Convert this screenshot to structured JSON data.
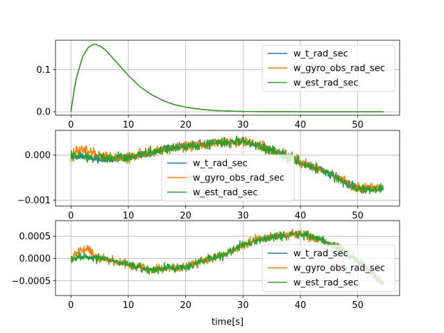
{
  "chart_data": [
    {
      "type": "line",
      "xlim": [
        -2.7,
        57.3
      ],
      "ylim": [
        -0.008,
        0.17
      ],
      "xticks": [
        0,
        10,
        20,
        30,
        40,
        50
      ],
      "xtick_labels": [
        "0",
        "10",
        "20",
        "30",
        "40",
        "50"
      ],
      "yticks": [
        0.0,
        0.1
      ],
      "ytick_labels": [
        "0.0",
        "0.1"
      ],
      "grid": true,
      "legend": "upper right",
      "xlabel": "",
      "series": [
        {
          "name": "w_t_rad_sec",
          "color": "#1f77b4",
          "x": [
            0,
            0.5,
            1,
            2,
            3,
            4,
            5,
            6,
            8,
            10,
            12,
            14,
            16,
            18,
            20,
            22,
            25,
            30,
            35,
            40,
            45,
            50,
            54.5
          ],
          "y": [
            0,
            0.048,
            0.083,
            0.13,
            0.153,
            0.161,
            0.157,
            0.147,
            0.117,
            0.086,
            0.06,
            0.041,
            0.027,
            0.017,
            0.011,
            0.0068,
            0.003,
            0.0008,
            0.0002,
            0.0001,
            0.0,
            0.0,
            0.0
          ]
        },
        {
          "name": "w_gyro_obs_rad_sec",
          "color": "#ff7f0e",
          "x": [
            0,
            0.5,
            1,
            2,
            3,
            4,
            5,
            6,
            8,
            10,
            12,
            14,
            16,
            18,
            20,
            22,
            25,
            30,
            35,
            40,
            45,
            50,
            54.5
          ],
          "y": [
            0,
            0.048,
            0.083,
            0.13,
            0.153,
            0.161,
            0.157,
            0.147,
            0.117,
            0.086,
            0.06,
            0.041,
            0.027,
            0.017,
            0.011,
            0.0068,
            0.003,
            0.0008,
            0.0002,
            0.0001,
            0.0,
            0.0,
            0.0
          ]
        },
        {
          "name": "w_est_rad_sec",
          "color": "#2ca02c",
          "x": [
            0,
            0.5,
            1,
            2,
            3,
            4,
            5,
            6,
            8,
            10,
            12,
            14,
            16,
            18,
            20,
            22,
            25,
            30,
            35,
            40,
            45,
            50,
            54.5
          ],
          "y": [
            0,
            0.048,
            0.083,
            0.13,
            0.153,
            0.161,
            0.157,
            0.147,
            0.117,
            0.086,
            0.06,
            0.041,
            0.027,
            0.017,
            0.011,
            0.0068,
            0.003,
            0.0008,
            0.0002,
            0.0001,
            0.0,
            0.0,
            0.0
          ]
        }
      ]
    },
    {
      "type": "line",
      "xlim": [
        -2.7,
        57.3
      ],
      "ylim": [
        -0.00113,
        0.00055
      ],
      "xticks": [
        0,
        10,
        20,
        30,
        40,
        50
      ],
      "xtick_labels": [
        "0",
        "10",
        "20",
        "30",
        "40",
        "50"
      ],
      "yticks": [
        -0.001,
        0.0
      ],
      "ytick_labels": [
        "−0.001",
        "0.000"
      ],
      "grid": true,
      "legend": "center",
      "xlabel": "",
      "noise": [
        6e-05,
        8e-05,
        8e-05
      ],
      "series": [
        {
          "name": "w_t_rad_sec",
          "color": "#1f77b4",
          "x": [
            0,
            3,
            6,
            10,
            15,
            20,
            25,
            30,
            33,
            36,
            40,
            45,
            50,
            54.5
          ],
          "y": [
            0.0,
            -5e-05,
            -8e-05,
            -5e-05,
            0.0001,
            0.0002,
            0.00028,
            0.0003,
            0.0002,
            5e-05,
            -0.00015,
            -0.0004,
            -0.00075,
            -0.00072
          ]
        },
        {
          "name": "w_gyro_obs_rad_sec",
          "color": "#ff7f0e",
          "x": [
            0,
            1,
            2,
            3,
            4,
            5,
            6,
            10,
            15,
            20,
            25,
            30,
            33,
            36,
            40,
            45,
            50,
            54.5
          ],
          "y": [
            0.0,
            0.0001,
            0.00012,
            0.0001,
            5e-05,
            -2e-05,
            -6e-05,
            -5e-05,
            0.0001,
            0.0002,
            0.00028,
            0.0003,
            0.0002,
            5e-05,
            -0.00015,
            -0.0004,
            -0.00075,
            -0.00072
          ]
        },
        {
          "name": "w_est_rad_sec",
          "color": "#2ca02c",
          "x": [
            0,
            3,
            6,
            10,
            15,
            20,
            25,
            30,
            33,
            36,
            40,
            45,
            50,
            54.5
          ],
          "y": [
            0.0,
            -5e-05,
            -8e-05,
            -5e-05,
            0.0001,
            0.0002,
            0.00028,
            0.0003,
            0.0002,
            5e-05,
            -0.00015,
            -0.0004,
            -0.00075,
            -0.00072
          ]
        }
      ]
    },
    {
      "type": "line",
      "xlim": [
        -2.7,
        57.3
      ],
      "ylim": [
        -0.00083,
        0.00085
      ],
      "xticks": [
        0,
        10,
        20,
        30,
        40,
        50
      ],
      "xtick_labels": [
        "0",
        "10",
        "20",
        "30",
        "40",
        "50"
      ],
      "yticks": [
        -0.0005,
        0.0,
        0.0005
      ],
      "ytick_labels": [
        "−0.0005",
        "0.0000",
        "0.0005"
      ],
      "grid": true,
      "legend": "lower right",
      "xlabel": "time[s]",
      "noise": [
        2e-05,
        7e-05,
        7e-05
      ],
      "series": [
        {
          "name": "w_t_rad_sec",
          "color": "#1f77b4",
          "x": [
            0,
            2,
            5,
            8,
            11,
            14,
            17,
            20,
            23,
            26,
            30,
            33,
            36,
            40,
            44,
            47,
            50,
            54.5
          ],
          "y": [
            0.0,
            3e-05,
            2e-05,
            -8e-05,
            -0.00018,
            -0.00025,
            -0.00022,
            -0.0002,
            -5e-05,
            5e-05,
            0.0003,
            0.00045,
            0.0005,
            0.00055,
            0.0004,
            0.0002,
            -5e-05,
            -0.00055
          ]
        },
        {
          "name": "w_gyro_obs_rad_sec",
          "color": "#ff7f0e",
          "x": [
            0,
            1,
            2,
            3,
            4,
            5,
            8,
            11,
            14,
            17,
            20,
            23,
            26,
            30,
            33,
            36,
            40,
            44,
            47,
            50,
            54.5
          ],
          "y": [
            0.0,
            0.00012,
            0.0002,
            0.00022,
            0.00012,
            3e-05,
            -8e-05,
            -0.00018,
            -0.00025,
            -0.00022,
            -0.0002,
            -5e-05,
            5e-05,
            0.0003,
            0.00045,
            0.0005,
            0.00055,
            0.0004,
            0.0002,
            -5e-05,
            -0.00055
          ]
        },
        {
          "name": "w_est_rad_sec",
          "color": "#2ca02c",
          "x": [
            0,
            2,
            5,
            8,
            11,
            14,
            17,
            20,
            23,
            26,
            30,
            33,
            36,
            40,
            44,
            47,
            50,
            54.5
          ],
          "y": [
            0.0,
            3e-05,
            2e-05,
            -8e-05,
            -0.00018,
            -0.00025,
            -0.00022,
            -0.0002,
            -5e-05,
            5e-05,
            0.0003,
            0.00045,
            0.0005,
            0.00055,
            0.0004,
            0.0002,
            -5e-05,
            -0.00055
          ]
        }
      ]
    }
  ]
}
